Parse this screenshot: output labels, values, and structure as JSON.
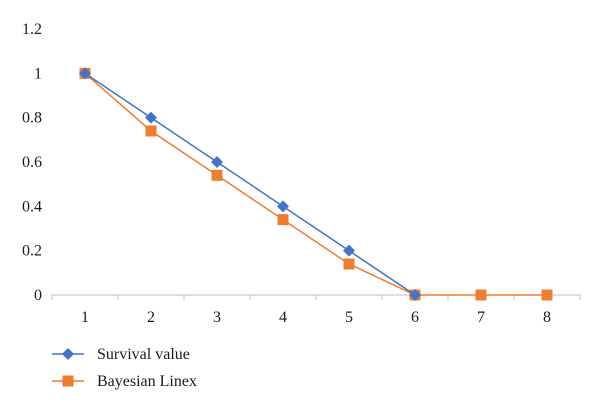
{
  "chart_data": {
    "type": "line",
    "title": "",
    "xlabel": "",
    "ylabel": "",
    "categories": [
      "1",
      "2",
      "3",
      "4",
      "5",
      "6",
      "7",
      "8"
    ],
    "ylim": [
      0,
      1.2
    ],
    "yticks": [
      "0",
      "0.2",
      "0.4",
      "0.6",
      "0.8",
      "1",
      "1.2"
    ],
    "grid": false,
    "legend_position": "bottom-left",
    "series": [
      {
        "name": "Survival value",
        "marker": "diamond",
        "color": "#4472C4",
        "values": [
          1,
          0.8,
          0.6,
          0.4,
          0.2,
          0,
          null,
          null
        ]
      },
      {
        "name": "Bayesian Linex",
        "marker": "square",
        "color": "#ED7D31",
        "values": [
          1,
          0.74,
          0.54,
          0.34,
          0.14,
          0,
          0,
          0
        ]
      }
    ]
  }
}
